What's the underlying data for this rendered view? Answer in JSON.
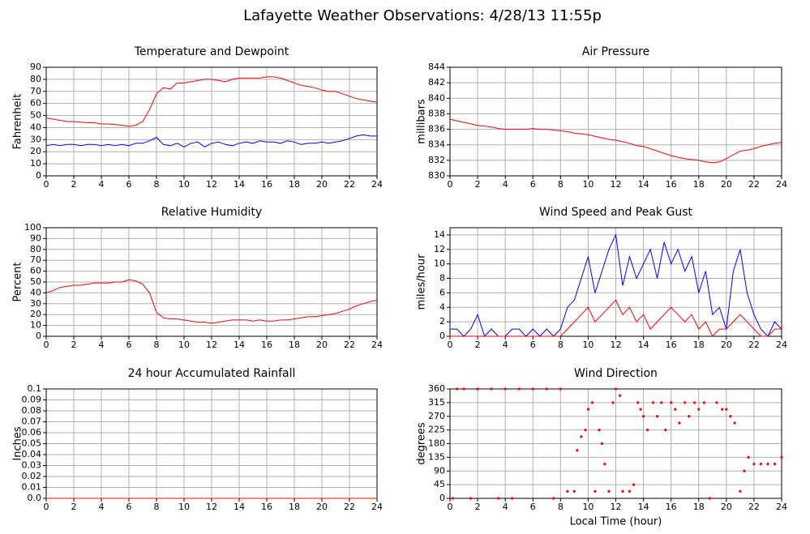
{
  "title": "Lafayette Weather Observations: 4/28/13 11:55p",
  "chart_data": [
    {
      "type": "line",
      "title": "Temperature and Dewpoint",
      "ylabel": "Fahrenheit",
      "x": [
        0,
        0.5,
        1,
        1.5,
        2,
        2.5,
        3,
        3.5,
        4,
        4.5,
        5,
        5.5,
        6,
        6.5,
        7,
        7.5,
        8,
        8.5,
        9,
        9.5,
        10,
        10.5,
        11,
        11.5,
        12,
        12.5,
        13,
        13.5,
        14,
        14.5,
        15,
        15.5,
        16,
        16.5,
        17,
        17.5,
        18,
        18.5,
        19,
        19.5,
        20,
        20.5,
        21,
        21.5,
        22,
        22.5,
        23,
        23.5,
        24
      ],
      "series": [
        {
          "color": "#ff0000",
          "values": [
            48,
            47,
            46,
            45,
            45,
            44.5,
            44,
            44,
            43,
            43,
            42.5,
            42,
            41,
            42,
            45,
            55,
            68,
            73,
            72,
            77,
            77,
            78,
            79,
            80,
            80,
            79,
            78,
            80,
            81,
            81,
            81,
            81,
            82,
            82,
            81,
            79,
            77,
            75,
            74,
            73,
            71,
            70,
            70,
            68,
            66,
            64,
            63,
            62,
            61
          ]
        },
        {
          "color": "#0000ff",
          "values": [
            25,
            26,
            25,
            26,
            26,
            25,
            26,
            26,
            25,
            26,
            25,
            26,
            25,
            27,
            27,
            29,
            32,
            26,
            25,
            27,
            24,
            27,
            28,
            24,
            27,
            28,
            26,
            25,
            27,
            28,
            27,
            29,
            28,
            28,
            27,
            29,
            28,
            26,
            27,
            27,
            28,
            27,
            28,
            29,
            31,
            33,
            34,
            33,
            33
          ]
        }
      ],
      "xlim": [
        0,
        24
      ],
      "xticks": [
        0,
        2,
        4,
        6,
        8,
        10,
        12,
        14,
        16,
        18,
        20,
        22,
        24
      ],
      "ylim": [
        0,
        90
      ],
      "yticks": [
        0,
        10,
        20,
        30,
        40,
        50,
        60,
        70,
        80,
        90
      ],
      "grid": true
    },
    {
      "type": "line",
      "title": "Air Pressure",
      "ylabel": "millibars",
      "x": [
        0,
        0.5,
        1,
        1.5,
        2,
        2.5,
        3,
        3.5,
        4,
        4.5,
        5,
        5.5,
        6,
        6.5,
        7,
        7.5,
        8,
        8.5,
        9,
        9.5,
        10,
        10.5,
        11,
        11.5,
        12,
        12.5,
        13,
        13.5,
        14,
        14.5,
        15,
        15.5,
        16,
        16.5,
        17,
        17.5,
        18,
        18.5,
        19,
        19.5,
        20,
        20.5,
        21,
        21.5,
        22,
        22.5,
        23,
        23.5,
        24
      ],
      "series": [
        {
          "color": "#ff0000",
          "values": [
            837.3,
            837.1,
            836.9,
            836.7,
            836.5,
            836.4,
            836.3,
            836.1,
            836.0,
            836.0,
            836.0,
            836.0,
            836.1,
            836.0,
            836.0,
            835.9,
            835.8,
            835.7,
            835.5,
            835.4,
            835.3,
            835.1,
            834.9,
            834.7,
            834.6,
            834.4,
            834.2,
            833.9,
            833.8,
            833.5,
            833.2,
            832.9,
            832.6,
            832.4,
            832.2,
            832.1,
            832.0,
            831.8,
            831.7,
            831.8,
            832.2,
            832.7,
            833.2,
            833.3,
            833.5,
            833.8,
            834.0,
            834.2,
            834.3
          ]
        }
      ],
      "xlim": [
        0,
        24
      ],
      "xticks": [
        0,
        2,
        4,
        6,
        8,
        10,
        12,
        14,
        16,
        18,
        20,
        22,
        24
      ],
      "ylim": [
        830,
        844
      ],
      "yticks": [
        830,
        832,
        834,
        836,
        838,
        840,
        842,
        844
      ],
      "grid": true
    },
    {
      "type": "line",
      "title": "Relative Humidity",
      "ylabel": "Percent",
      "x": [
        0,
        0.5,
        1,
        1.5,
        2,
        2.5,
        3,
        3.5,
        4,
        4.5,
        5,
        5.5,
        6,
        6.5,
        7,
        7.5,
        8,
        8.5,
        9,
        9.5,
        10,
        10.5,
        11,
        11.5,
        12,
        12.5,
        13,
        13.5,
        14,
        14.5,
        15,
        15.5,
        16,
        16.5,
        17,
        17.5,
        18,
        18.5,
        19,
        19.5,
        20,
        20.5,
        21,
        21.5,
        22,
        22.5,
        23,
        23.5,
        24
      ],
      "series": [
        {
          "color": "#ff0000",
          "values": [
            40,
            42,
            45,
            46,
            47,
            47,
            48,
            49,
            49,
            49,
            50,
            50,
            52,
            51,
            48,
            40,
            22,
            17,
            16,
            16,
            15,
            14,
            13,
            13,
            12,
            13,
            14,
            15,
            15,
            15,
            14,
            15,
            14,
            14,
            15,
            15,
            16,
            17,
            18,
            18,
            19,
            20,
            21,
            23,
            25,
            28,
            30,
            32,
            33
          ]
        }
      ],
      "xlim": [
        0,
        24
      ],
      "xticks": [
        0,
        2,
        4,
        6,
        8,
        10,
        12,
        14,
        16,
        18,
        20,
        22,
        24
      ],
      "ylim": [
        0,
        100
      ],
      "yticks": [
        0,
        10,
        20,
        30,
        40,
        50,
        60,
        70,
        80,
        90,
        100
      ],
      "grid": true
    },
    {
      "type": "line",
      "title": "Wind Speed and Peak Gust",
      "ylabel": "miles/hour",
      "x": [
        0,
        0.5,
        1,
        1.5,
        2,
        2.5,
        3,
        3.5,
        4,
        4.5,
        5,
        5.5,
        6,
        6.5,
        7,
        7.5,
        8,
        8.5,
        9,
        9.5,
        10,
        10.5,
        11,
        11.5,
        12,
        12.5,
        13,
        13.5,
        14,
        14.5,
        15,
        15.5,
        16,
        16.5,
        17,
        17.5,
        18,
        18.5,
        19,
        19.5,
        20,
        20.5,
        21,
        21.5,
        22,
        22.5,
        23,
        23.5,
        24
      ],
      "series": [
        {
          "color": "#0000ff",
          "values": [
            1,
            1,
            0,
            1,
            3,
            0,
            1,
            0,
            0,
            1,
            1,
            0,
            1,
            0,
            1,
            0,
            1,
            4,
            5,
            8,
            11,
            6,
            9,
            12,
            14,
            7,
            11,
            8,
            10,
            12,
            8,
            13,
            10,
            12,
            9,
            11,
            6,
            9,
            3,
            4,
            1,
            9,
            12,
            6,
            3,
            1,
            0,
            2,
            1
          ]
        },
        {
          "color": "#ff0000",
          "values": [
            0,
            0,
            0,
            0,
            0,
            0,
            0,
            0,
            0,
            0,
            0,
            0,
            0,
            0,
            0,
            0,
            0,
            1,
            2,
            3,
            4,
            2,
            3,
            4,
            5,
            3,
            4,
            2,
            3,
            1,
            2,
            3,
            4,
            3,
            2,
            3,
            1,
            2,
            0,
            1,
            1,
            2,
            3,
            2,
            1,
            0,
            0,
            1,
            1
          ]
        }
      ],
      "xlim": [
        0,
        24
      ],
      "xticks": [
        0,
        2,
        4,
        6,
        8,
        10,
        12,
        14,
        16,
        18,
        20,
        22,
        24
      ],
      "ylim": [
        0,
        15
      ],
      "yticks": [
        0,
        2,
        4,
        6,
        8,
        10,
        12,
        14
      ],
      "grid": true
    },
    {
      "type": "line",
      "title": "24 hour Accumulated Rainfall",
      "ylabel": "Inches",
      "x": [
        0,
        24
      ],
      "series": [
        {
          "color": "#ff0000",
          "values": [
            0,
            0
          ]
        }
      ],
      "xlim": [
        0,
        24
      ],
      "xticks": [
        0,
        2,
        4,
        6,
        8,
        10,
        12,
        14,
        16,
        18,
        20,
        22,
        24
      ],
      "ylim": [
        0,
        0.1
      ],
      "yticks": [
        {
          "value": 0,
          "label": "0.0"
        },
        0.01,
        0.02,
        0.03,
        0.04,
        0.05,
        0.06,
        0.07,
        0.08,
        0.09,
        0.1
      ],
      "grid": true
    },
    {
      "type": "scatter",
      "title": "Wind Direction",
      "ylabel": "degrees",
      "xlabel": "Local Time (hour)",
      "color": "#ff0000",
      "x": [
        0.2,
        0.5,
        1,
        1.5,
        2,
        3,
        3.5,
        4,
        4.5,
        5,
        6,
        7,
        7.5,
        8,
        8.5,
        9,
        9.2,
        9.5,
        9.8,
        10,
        10.3,
        10.5,
        10.8,
        11,
        11.2,
        11.5,
        11.8,
        12,
        12.3,
        12.5,
        13,
        13.3,
        13.6,
        13.8,
        14,
        14.3,
        14.7,
        15,
        15.3,
        15.6,
        16,
        16.3,
        16.6,
        17,
        17.3,
        17.7,
        18,
        18.4,
        18.8,
        19.3,
        19.7,
        20,
        20.3,
        20.6,
        21,
        21.3,
        21.6,
        22,
        22.5,
        23,
        23.5,
        24
      ],
      "values": [
        0,
        360,
        360,
        0,
        360,
        360,
        0,
        360,
        0,
        360,
        360,
        360,
        0,
        360,
        23,
        23,
        158,
        203,
        225,
        293,
        315,
        23,
        225,
        180,
        113,
        23,
        315,
        360,
        338,
        23,
        23,
        45,
        315,
        293,
        270,
        225,
        315,
        270,
        315,
        225,
        315,
        293,
        248,
        315,
        270,
        315,
        293,
        315,
        0,
        315,
        293,
        293,
        270,
        248,
        23,
        90,
        135,
        113,
        113,
        113,
        113,
        135
      ],
      "xlim": [
        0,
        24
      ],
      "xticks": [
        0,
        2,
        4,
        6,
        8,
        10,
        12,
        14,
        16,
        18,
        20,
        22,
        24
      ],
      "ylim": [
        0,
        360
      ],
      "yticks": [
        0,
        45,
        90,
        135,
        180,
        225,
        270,
        315,
        360
      ],
      "grid": true
    }
  ]
}
